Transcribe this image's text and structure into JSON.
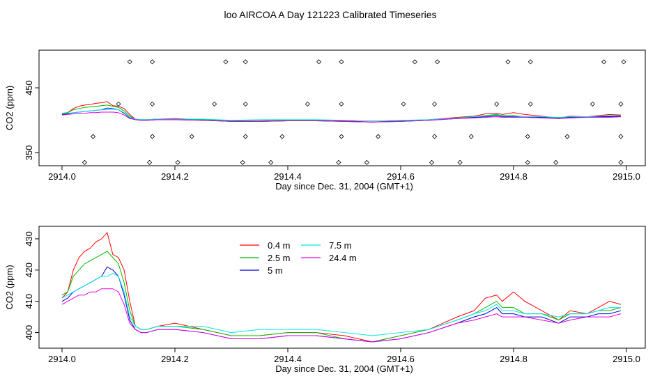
{
  "figure": {
    "title": "loo AIRCOA A  Day 121223  Calibrated Timeseries"
  },
  "chart_data": [
    {
      "type": "line",
      "panel": "top",
      "xlabel": "Day since Dec. 31, 2004 (GMT+1)",
      "ylabel": "CO2 (ppm)",
      "xlim": [
        2914.0,
        2915.0
      ],
      "ylim": [
        330,
        508
      ],
      "xticks": [
        "2914.0",
        "2914.2",
        "2914.4",
        "2914.6",
        "2914.8",
        "2915.0"
      ],
      "yticks": [
        "350",
        "450"
      ],
      "series_note": "same five series as bottom panel, compressed scale",
      "calibration_points": {
        "x": [
          2914.04,
          2914.055,
          2914.1,
          2914.12,
          2914.155,
          2914.16,
          2914.16,
          2914.16,
          2914.205,
          2914.23,
          2914.27,
          2914.29,
          2914.32,
          2914.325,
          2914.325,
          2914.325,
          2914.37,
          2914.39,
          2914.435,
          2914.455,
          2914.49,
          2914.495,
          2914.495,
          2914.495,
          2914.54,
          2914.56,
          2914.605,
          2914.625,
          2914.655,
          2914.66,
          2914.66,
          2914.665,
          2914.705,
          2914.725,
          2914.77,
          2914.79,
          2914.825,
          2914.825,
          2914.83,
          2914.83,
          2914.875,
          2914.895,
          2914.94,
          2914.96,
          2914.99,
          2914.99,
          2914.99,
          2914.995
        ],
        "y": [
          335,
          375,
          425,
          490,
          335,
          375,
          425,
          490,
          335,
          375,
          425,
          490,
          335,
          375,
          425,
          490,
          335,
          375,
          425,
          490,
          335,
          375,
          425,
          490,
          335,
          375,
          425,
          490,
          335,
          375,
          425,
          490,
          335,
          375,
          425,
          490,
          335,
          375,
          425,
          490,
          335,
          375,
          425,
          490,
          335,
          375,
          425,
          490
        ]
      }
    },
    {
      "type": "line",
      "panel": "bottom",
      "xlabel": "Day since Dec. 31, 2004 (GMT+1)",
      "ylabel": "CO2 (ppm)",
      "xlim": [
        2914.0,
        2915.0
      ],
      "ylim": [
        395,
        434
      ],
      "xticks": [
        "2914.0",
        "2914.2",
        "2914.4",
        "2914.6",
        "2914.8",
        "2915.0"
      ],
      "yticks": [
        "400",
        "410",
        "420",
        "430"
      ],
      "legend_position": "top-center",
      "x": [
        2914.0,
        2914.01,
        2914.02,
        2914.03,
        2914.04,
        2914.05,
        2914.06,
        2914.07,
        2914.08,
        2914.09,
        2914.1,
        2914.11,
        2914.12,
        2914.13,
        2914.14,
        2914.15,
        2914.17,
        2914.2,
        2914.25,
        2914.3,
        2914.35,
        2914.4,
        2914.45,
        2914.5,
        2914.55,
        2914.6,
        2914.65,
        2914.7,
        2914.73,
        2914.75,
        2914.77,
        2914.78,
        2914.8,
        2914.82,
        2914.85,
        2914.88,
        2914.9,
        2914.93,
        2914.95,
        2914.97,
        2914.99
      ],
      "series": [
        {
          "name": "0.4 m",
          "color": "#ff0000",
          "values": [
            411,
            413,
            420,
            424,
            426,
            427,
            429,
            430,
            432,
            425,
            424,
            420,
            410,
            402,
            401,
            401,
            402,
            403,
            401,
            399,
            399,
            400,
            400,
            399,
            397,
            399,
            401,
            405,
            407,
            411,
            412,
            410,
            413,
            410,
            407,
            404,
            407,
            406,
            408,
            410,
            409
          ]
        },
        {
          "name": "2.5 m",
          "color": "#00bb00",
          "values": [
            412,
            413,
            418,
            420,
            422,
            423,
            424,
            425,
            426,
            424,
            422,
            416,
            407,
            402,
            401,
            401,
            402,
            402,
            401,
            399,
            399,
            400,
            400,
            398,
            397,
            399,
            401,
            404,
            406,
            408,
            410,
            408,
            408,
            406,
            406,
            404,
            406,
            406,
            407,
            407,
            408
          ]
        },
        {
          "name": "5 m",
          "color": "#0000cc",
          "values": [
            410,
            411,
            413,
            414,
            415,
            416,
            417,
            418,
            421,
            420,
            418,
            412,
            404,
            401,
            400,
            400,
            401,
            401,
            400,
            398,
            398,
            399,
            399,
            398,
            397,
            398,
            400,
            403,
            405,
            406,
            408,
            406,
            406,
            405,
            405,
            403,
            405,
            405,
            406,
            406,
            407
          ]
        },
        {
          "name": "7.5 m",
          "color": "#00e5e5",
          "values": [
            411,
            412,
            413,
            414,
            415,
            416,
            417,
            418,
            418,
            419,
            418,
            413,
            405,
            402,
            401,
            401,
            402,
            402,
            402,
            400,
            401,
            401,
            401,
            400,
            399,
            400,
            401,
            404,
            406,
            407,
            409,
            407,
            407,
            406,
            406,
            405,
            406,
            406,
            407,
            408,
            408
          ]
        },
        {
          "name": "24.4 m",
          "color": "#e000e0",
          "values": [
            409,
            410,
            411,
            412,
            412,
            413,
            413,
            414,
            414,
            414,
            413,
            409,
            403,
            401,
            400,
            400,
            401,
            401,
            400,
            398,
            398,
            399,
            399,
            398,
            397,
            398,
            400,
            403,
            404,
            405,
            406,
            405,
            405,
            405,
            404,
            403,
            404,
            405,
            405,
            405,
            406
          ]
        }
      ]
    }
  ]
}
